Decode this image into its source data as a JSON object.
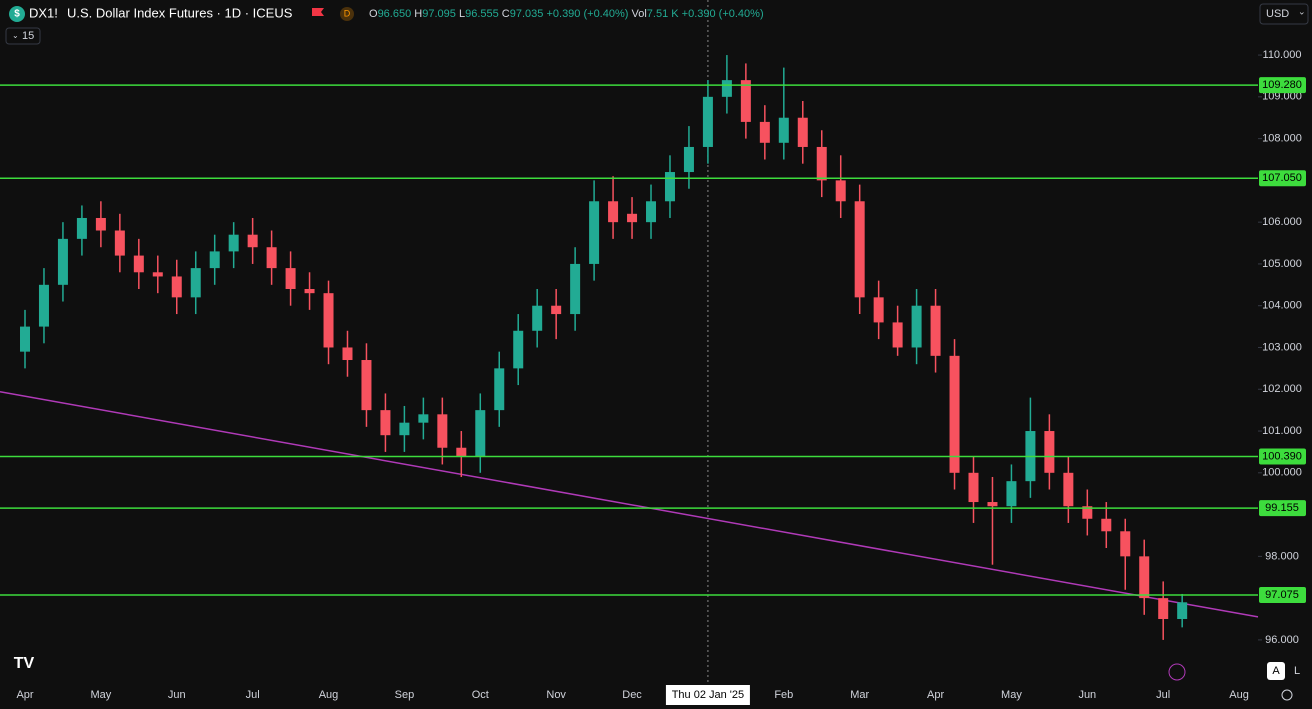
{
  "header": {
    "symbol": "DX1!",
    "title": "U.S. Dollar Index Futures · 1D · ICEUS",
    "badge": "D",
    "ohlc": [
      {
        "key": "O",
        "value": "96.650"
      },
      {
        "key": "H",
        "value": "97.095"
      },
      {
        "key": "L",
        "value": "96.555"
      },
      {
        "key": "C",
        "value": "97.035"
      }
    ],
    "change": "+0.390 (+0.40%)",
    "volume_key": "Vol",
    "volume": "7.51 K",
    "volume_change": "+0.390 (+0.40%)",
    "indicator": "15",
    "currency": "USD",
    "buttons": [
      "A",
      "L"
    ]
  },
  "chart_data": {
    "type": "candlestick",
    "categories": [
      "Apr",
      null,
      null,
      null,
      "May",
      null,
      null,
      null,
      "Jun",
      null,
      null,
      null,
      "Jul",
      null,
      null,
      null,
      "Aug",
      null,
      null,
      null,
      "Sep",
      null,
      null,
      null,
      "Oct",
      null,
      null,
      null,
      "Nov",
      null,
      null,
      null,
      "Dec",
      null,
      null,
      null,
      "Thu 02 Jan '25",
      null,
      null,
      null,
      "Feb",
      null,
      null,
      null,
      "Mar",
      null,
      null,
      null,
      "Apr",
      null,
      null,
      null,
      "May",
      null,
      null,
      null,
      "Jun",
      null,
      null,
      null,
      "Jul",
      null,
      null,
      null,
      "Aug"
    ],
    "open": [
      102.9,
      103.5,
      104.5,
      105.6,
      106.1,
      105.8,
      105.2,
      104.8,
      104.7,
      104.2,
      104.9,
      105.3,
      105.7,
      105.4,
      104.9,
      104.4,
      104.3,
      103.0,
      102.7,
      101.5,
      100.9,
      101.2,
      101.4,
      100.6,
      100.4,
      101.5,
      102.5,
      103.4,
      104.0,
      103.8,
      105.0,
      106.5,
      106.2,
      106.0,
      106.5,
      107.2,
      107.8,
      109.0,
      109.4,
      108.4,
      107.9,
      108.5,
      107.8,
      107.0,
      106.5,
      104.2,
      103.6,
      103.0,
      104.0,
      102.8,
      100.0,
      99.3,
      99.2,
      99.8,
      101.0,
      100.0,
      99.2,
      98.9,
      98.6,
      98.0,
      97.0,
      96.5,
      null,
      null,
      null
    ],
    "high": [
      103.9,
      104.9,
      106.0,
      106.4,
      106.5,
      106.2,
      105.6,
      105.2,
      105.1,
      105.3,
      105.7,
      106.0,
      106.1,
      105.8,
      105.3,
      104.8,
      104.6,
      103.4,
      103.1,
      101.9,
      101.6,
      101.8,
      101.8,
      101.0,
      101.9,
      102.9,
      103.8,
      104.4,
      104.4,
      105.4,
      107.0,
      107.1,
      106.6,
      106.9,
      107.6,
      108.3,
      109.4,
      110.0,
      109.8,
      108.8,
      109.7,
      108.9,
      108.2,
      107.6,
      106.9,
      104.6,
      104.0,
      104.4,
      104.4,
      103.2,
      100.4,
      99.9,
      100.2,
      101.8,
      101.4,
      100.4,
      99.6,
      99.3,
      98.9,
      98.4,
      97.4,
      97.1,
      null,
      null,
      null
    ],
    "low": [
      102.5,
      103.1,
      104.1,
      105.2,
      105.4,
      104.8,
      104.4,
      104.3,
      103.8,
      103.8,
      104.5,
      104.9,
      105.0,
      104.5,
      104.0,
      103.9,
      102.6,
      102.3,
      101.1,
      100.5,
      100.5,
      100.8,
      100.2,
      99.9,
      100.0,
      101.1,
      102.1,
      103.0,
      103.2,
      103.4,
      104.6,
      105.6,
      105.6,
      105.6,
      106.1,
      106.8,
      107.4,
      108.6,
      108.0,
      107.5,
      107.5,
      107.4,
      106.6,
      106.1,
      103.8,
      103.2,
      102.8,
      102.6,
      102.4,
      99.6,
      98.8,
      97.8,
      98.8,
      99.4,
      99.6,
      98.8,
      98.5,
      98.2,
      97.2,
      96.6,
      96.0,
      96.3,
      null,
      null,
      null
    ],
    "close": [
      103.5,
      104.5,
      105.6,
      106.1,
      105.8,
      105.2,
      104.8,
      104.7,
      104.2,
      104.9,
      105.3,
      105.7,
      105.4,
      104.9,
      104.4,
      104.3,
      103.0,
      102.7,
      101.5,
      100.9,
      101.2,
      101.4,
      100.6,
      100.4,
      101.5,
      102.5,
      103.4,
      104.0,
      103.8,
      105.0,
      106.5,
      106.0,
      106.0,
      106.5,
      107.2,
      107.8,
      109.0,
      109.4,
      108.4,
      107.9,
      108.5,
      107.8,
      107.0,
      106.5,
      104.2,
      103.6,
      103.0,
      104.0,
      102.8,
      100.0,
      99.3,
      99.2,
      99.8,
      101.0,
      100.0,
      99.2,
      98.9,
      98.6,
      98.0,
      97.0,
      96.5,
      96.9,
      null,
      null,
      null
    ],
    "up_color": "#22ab94",
    "down_color": "#f7525f",
    "ylim": [
      95.04,
      110.6
    ],
    "yticks": [
      {
        "value": 110,
        "label": "110.000"
      },
      {
        "value": 109,
        "label": "109.000"
      },
      {
        "value": 108,
        "label": "108.000"
      },
      {
        "value": 106,
        "label": "106.000"
      },
      {
        "value": 105,
        "label": "105.000"
      },
      {
        "value": 104,
        "label": "104.000"
      },
      {
        "value": 103,
        "label": "103.000"
      },
      {
        "value": 102,
        "label": "102.000"
      },
      {
        "value": 101,
        "label": "101.000"
      },
      {
        "value": 100,
        "label": "100.000"
      },
      {
        "value": 98,
        "label": "98.000"
      },
      {
        "value": 96,
        "label": "96.000"
      }
    ],
    "levels": [
      {
        "value": 109.28,
        "label": "109.280"
      },
      {
        "value": 107.05,
        "label": "107.050"
      },
      {
        "value": 100.39,
        "label": "100.390"
      },
      {
        "value": 99.155,
        "label": "99.155"
      },
      {
        "value": 97.075,
        "label": "97.075"
      }
    ],
    "level_color": "#3ddc3d",
    "trendline": {
      "start": 101.94,
      "end": 96.55,
      "color": "#b03ab8"
    }
  }
}
